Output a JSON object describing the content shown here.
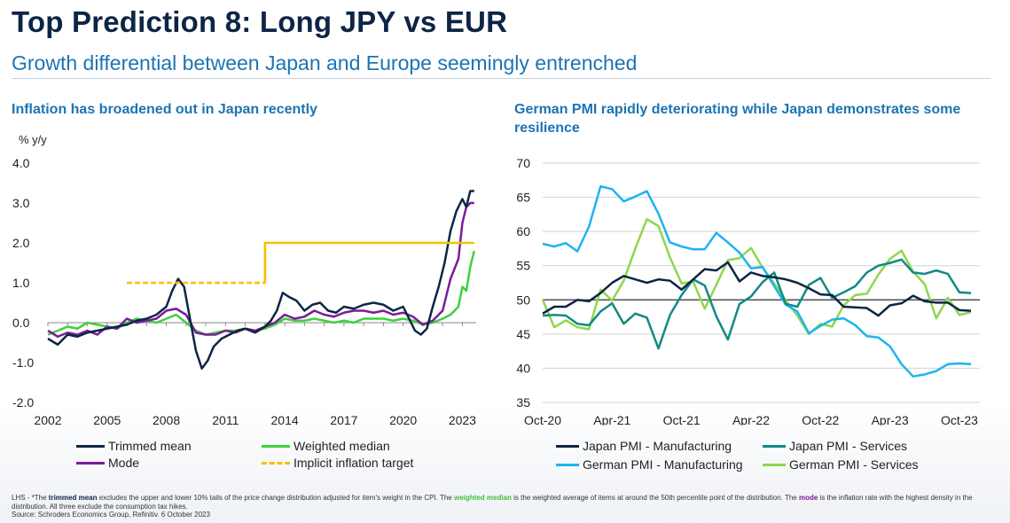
{
  "header": {
    "title": "Top Prediction 8: Long JPY vs EUR",
    "subtitle": "Growth differential between Japan and Europe seemingly entrenched"
  },
  "left_panel": {
    "title": "Inflation has broadened out in Japan recently",
    "unit": "% y/y"
  },
  "right_panel": {
    "title": "German PMI rapidly deteriorating while Japan demonstrates some resilience"
  },
  "footer": {
    "p1": "LHS - *The ",
    "trimmed": "trimmed mean",
    "p2": " excludes the upper and lower 10% tails of the price change distribution adjusted for item's weight in the CPI. The ",
    "weighted": "weighted median",
    "p3": " is the weighted average of items at around the 50th percentile point of the distribution. The ",
    "mode": "mode",
    "p4": " is the inflation rate with the highest density in the distribution. All three exclude the consumption tax hikes.",
    "source": "Source: Schroders Economics Group, Refinitiv. 6 October 2023"
  },
  "colors": {
    "navy": "#0d2545",
    "bright_green": "#3fd13a",
    "purple": "#7a1c9a",
    "gold": "#f6bf00",
    "light_blue": "#1cb4f0",
    "teal": "#118a84",
    "light_green": "#8fd64f"
  },
  "chart_data": [
    {
      "type": "line",
      "ylim": [
        -2.0,
        4.0
      ],
      "yticks": [
        "-2.0",
        "-1.0",
        "0.0",
        "1.0",
        "2.0",
        "3.0",
        "4.0"
      ],
      "xticks": [
        "2002",
        "2005",
        "2008",
        "2011",
        "2014",
        "2017",
        "2020",
        "2023"
      ],
      "xlim": [
        2002.0,
        2023.7
      ],
      "legend_position": "bottom",
      "series": [
        {
          "name": "Trimmed mean",
          "color": "#0d2545",
          "x": [
            2002.0,
            2002.5,
            2003.0,
            2003.5,
            2004.0,
            2004.5,
            2005.0,
            2005.5,
            2006.0,
            2006.5,
            2007.0,
            2007.5,
            2008.0,
            2008.3,
            2008.6,
            2008.9,
            2009.2,
            2009.5,
            2009.8,
            2010.1,
            2010.4,
            2010.8,
            2011.2,
            2011.6,
            2012.0,
            2012.5,
            2013.0,
            2013.3,
            2013.6,
            2013.9,
            2014.2,
            2014.6,
            2015.0,
            2015.4,
            2015.8,
            2016.2,
            2016.6,
            2017.0,
            2017.5,
            2018.0,
            2018.5,
            2019.0,
            2019.5,
            2020.0,
            2020.3,
            2020.6,
            2020.9,
            2021.2,
            2021.5,
            2021.8,
            2022.1,
            2022.4,
            2022.7,
            2023.0,
            2023.2,
            2023.4,
            2023.6
          ],
          "values": [
            -0.4,
            -0.55,
            -0.3,
            -0.35,
            -0.25,
            -0.2,
            -0.15,
            -0.1,
            -0.05,
            0.05,
            0.1,
            0.2,
            0.4,
            0.8,
            1.1,
            0.9,
            0.1,
            -0.7,
            -1.15,
            -0.95,
            -0.6,
            -0.4,
            -0.3,
            -0.2,
            -0.15,
            -0.25,
            -0.1,
            0.05,
            0.3,
            0.75,
            0.65,
            0.55,
            0.3,
            0.45,
            0.5,
            0.3,
            0.25,
            0.4,
            0.35,
            0.45,
            0.5,
            0.45,
            0.3,
            0.4,
            0.1,
            -0.2,
            -0.3,
            -0.15,
            0.4,
            0.9,
            1.5,
            2.3,
            2.8,
            3.1,
            2.9,
            3.3,
            3.3
          ]
        },
        {
          "name": "Weighted median",
          "color": "#3fd13a",
          "x": [
            2002.0,
            2002.5,
            2003.0,
            2003.5,
            2004.0,
            2004.5,
            2005.0,
            2005.5,
            2006.0,
            2006.5,
            2007.0,
            2007.5,
            2008.0,
            2008.5,
            2009.0,
            2009.5,
            2010.0,
            2010.5,
            2011.0,
            2011.5,
            2012.0,
            2012.5,
            2013.0,
            2013.5,
            2014.0,
            2014.5,
            2015.0,
            2015.5,
            2016.0,
            2016.5,
            2017.0,
            2017.5,
            2018.0,
            2018.5,
            2019.0,
            2019.5,
            2020.0,
            2020.5,
            2021.0,
            2021.5,
            2022.0,
            2022.4,
            2022.8,
            2023.0,
            2023.2,
            2023.4,
            2023.6
          ],
          "values": [
            -0.3,
            -0.2,
            -0.1,
            -0.15,
            0.0,
            -0.05,
            -0.1,
            -0.15,
            0.0,
            0.1,
            0.05,
            0.0,
            0.1,
            0.2,
            0.0,
            -0.2,
            -0.3,
            -0.25,
            -0.2,
            -0.2,
            -0.15,
            -0.2,
            -0.15,
            -0.05,
            0.1,
            0.05,
            0.05,
            0.1,
            0.05,
            0.0,
            0.05,
            0.0,
            0.1,
            0.1,
            0.1,
            0.05,
            0.1,
            0.05,
            -0.05,
            0.0,
            0.1,
            0.2,
            0.4,
            0.9,
            0.8,
            1.4,
            1.8
          ]
        },
        {
          "name": "Mode",
          "color": "#7a1c9a",
          "x": [
            2002.0,
            2002.5,
            2003.0,
            2003.5,
            2004.0,
            2004.5,
            2005.0,
            2005.5,
            2006.0,
            2006.5,
            2007.0,
            2007.5,
            2008.0,
            2008.5,
            2009.0,
            2009.5,
            2010.0,
            2010.5,
            2011.0,
            2011.5,
            2012.0,
            2012.5,
            2013.0,
            2013.5,
            2014.0,
            2014.5,
            2015.0,
            2015.5,
            2016.0,
            2016.5,
            2017.0,
            2017.5,
            2018.0,
            2018.5,
            2019.0,
            2019.5,
            2020.0,
            2020.5,
            2021.0,
            2021.5,
            2022.0,
            2022.4,
            2022.8,
            2023.0,
            2023.2,
            2023.4,
            2023.6
          ],
          "values": [
            -0.2,
            -0.35,
            -0.25,
            -0.3,
            -0.2,
            -0.3,
            -0.1,
            -0.15,
            0.1,
            0.0,
            0.05,
            0.1,
            0.3,
            0.35,
            0.2,
            -0.25,
            -0.3,
            -0.3,
            -0.2,
            -0.25,
            -0.15,
            -0.2,
            -0.1,
            0.0,
            0.2,
            0.1,
            0.15,
            0.3,
            0.2,
            0.15,
            0.25,
            0.3,
            0.3,
            0.25,
            0.3,
            0.2,
            0.25,
            0.15,
            -0.05,
            0.05,
            0.3,
            1.1,
            1.6,
            2.5,
            2.9,
            3.0,
            3.0
          ]
        },
        {
          "name": "Implicit inflation target",
          "color": "#f6bf00",
          "dashed_until": 2013.0,
          "x": [
            2006.0,
            2013.0,
            2013.0,
            2023.6
          ],
          "values": [
            1.0,
            1.0,
            2.0,
            2.0
          ]
        }
      ]
    },
    {
      "type": "line",
      "ylim": [
        35,
        70
      ],
      "yticks": [
        "35",
        "40",
        "45",
        "50",
        "55",
        "60",
        "65",
        "70"
      ],
      "xticks": [
        "Oct-20",
        "Apr-21",
        "Oct-21",
        "Apr-22",
        "Oct-22",
        "Apr-23",
        "Oct-23"
      ],
      "reference_line": 50,
      "legend_position": "bottom",
      "series": [
        {
          "name": "Japan PMI - Manufacturing",
          "color": "#0d2545",
          "values": [
            48.0,
            49.0,
            49.0,
            50.0,
            49.8,
            51.0,
            52.5,
            53.5,
            53.0,
            52.5,
            53.0,
            52.8,
            51.5,
            53.0,
            54.5,
            54.3,
            55.5,
            52.7,
            54.0,
            53.5,
            53.3,
            53.0,
            52.5,
            51.7,
            50.8,
            50.7,
            49.0,
            48.9,
            48.8,
            47.7,
            49.2,
            49.5,
            50.6,
            49.8,
            49.6,
            49.6,
            48.5,
            48.4
          ]
        },
        {
          "name": "Japan PMI - Services",
          "color": "#118a84",
          "values": [
            47.7,
            47.8,
            47.7,
            46.5,
            46.3,
            48.3,
            49.5,
            46.5,
            48.0,
            47.4,
            42.9,
            47.8,
            50.7,
            53.0,
            52.1,
            47.6,
            44.2,
            49.4,
            50.5,
            52.6,
            54.0,
            49.4,
            49.0,
            52.2,
            53.2,
            50.3,
            51.1,
            52.0,
            54.0,
            55.0,
            55.4,
            55.9,
            54.0,
            53.8,
            54.3,
            53.8,
            51.1,
            51.0
          ]
        },
        {
          "name": "German PMI - Manufacturing",
          "color": "#1cb4f0",
          "values": [
            58.2,
            57.8,
            58.3,
            57.1,
            60.7,
            66.6,
            66.2,
            64.4,
            65.1,
            65.9,
            62.6,
            58.4,
            57.8,
            57.4,
            57.4,
            59.8,
            58.4,
            56.9,
            54.6,
            54.8,
            52.0,
            49.3,
            48.3,
            45.1,
            46.2,
            47.1,
            47.3,
            46.3,
            44.7,
            44.5,
            43.2,
            40.6,
            38.8,
            39.1,
            39.6,
            40.6,
            40.7,
            40.6
          ]
        },
        {
          "name": "German PMI - Services",
          "color": "#8fd64f",
          "values": [
            50.0,
            46.0,
            47.0,
            46.0,
            45.7,
            51.5,
            49.9,
            52.8,
            57.5,
            61.8,
            60.8,
            56.2,
            52.4,
            52.7,
            48.7,
            52.2,
            55.8,
            56.1,
            57.6,
            54.7,
            52.4,
            49.9,
            47.7,
            45.0,
            46.5,
            46.1,
            49.2,
            50.7,
            50.9,
            53.7,
            56.0,
            57.2,
            54.1,
            52.3,
            47.3,
            50.3,
            47.8,
            48.2
          ]
        }
      ]
    }
  ],
  "legend_left": [
    "Trimmed mean",
    "Weighted median",
    "Mode",
    "Implicit inflation target"
  ],
  "legend_right": [
    "Japan PMI - Manufacturing",
    "Japan PMI - Services",
    "German PMI - Manufacturing",
    "German PMI - Services"
  ]
}
